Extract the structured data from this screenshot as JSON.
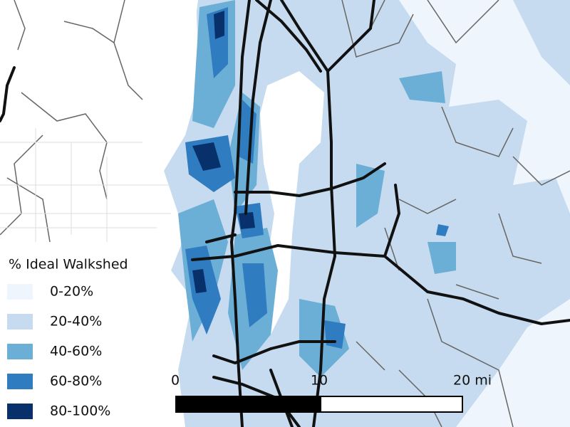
{
  "legend": {
    "title": "% Ideal Walkshed",
    "items": [
      {
        "label": "0-20%",
        "color": "#eef5fc"
      },
      {
        "label": "20-40%",
        "color": "#c6dbef"
      },
      {
        "label": "40-60%",
        "color": "#6baed6"
      },
      {
        "label": "60-80%",
        "color": "#2f7cc0"
      },
      {
        "label": "80-100%",
        "color": "#08306b"
      }
    ]
  },
  "scale_bar": {
    "labels": [
      "0",
      "10",
      "20 mi"
    ]
  }
}
